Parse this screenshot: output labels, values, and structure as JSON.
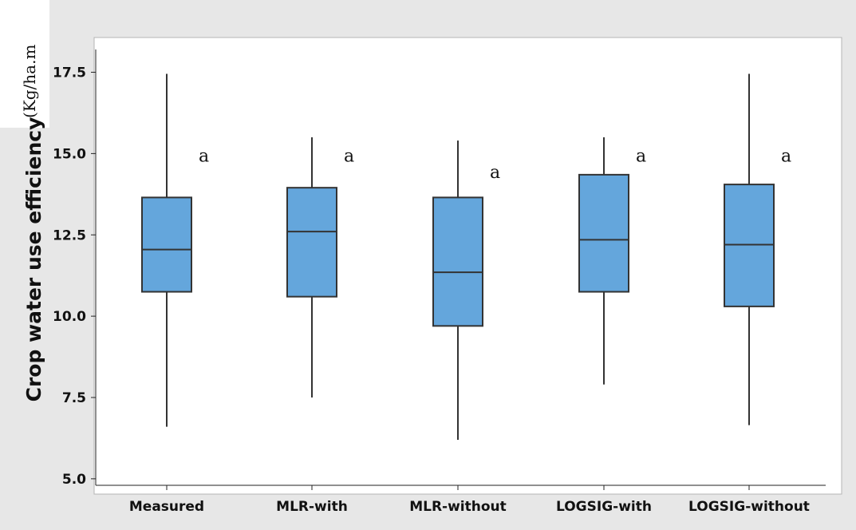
{
  "chart_data": {
    "type": "boxplot",
    "ylabel": "Crop water use efficiency",
    "ylabel_unit": "(Kg/ha.m",
    "xlabel": "",
    "ylim": [
      4.8,
      18.2
    ],
    "yticks": [
      "5.0",
      "7.5",
      "10.0",
      "12.5",
      "15.0",
      "17.5"
    ],
    "ytick_values": [
      5.0,
      7.5,
      10.0,
      12.5,
      15.0,
      17.5
    ],
    "grid": false,
    "box_color": "#64a6dc",
    "categories": [
      "Measured",
      "MLR-with",
      "MLR-without",
      "LOGSIG-with",
      "LOGSIG-without"
    ],
    "boxes": [
      {
        "category": "Measured",
        "min": 6.6,
        "q1": 10.75,
        "median": 12.05,
        "q3": 13.65,
        "max": 17.45,
        "group": "a"
      },
      {
        "category": "MLR-with",
        "min": 7.5,
        "q1": 10.6,
        "median": 12.6,
        "q3": 13.95,
        "max": 15.5,
        "group": "a"
      },
      {
        "category": "MLR-without",
        "min": 6.2,
        "q1": 9.7,
        "median": 11.35,
        "q3": 13.65,
        "max": 15.4,
        "group": "a"
      },
      {
        "category": "LOGSIG-with",
        "min": 7.9,
        "q1": 10.75,
        "median": 12.35,
        "q3": 14.35,
        "max": 15.5,
        "group": "a"
      },
      {
        "category": "LOGSIG-without",
        "min": 6.65,
        "q1": 10.3,
        "median": 12.2,
        "q3": 14.05,
        "max": 17.45,
        "group": "a"
      }
    ],
    "letter_values": [
      14.95,
      14.95,
      14.45,
      14.95,
      14.95
    ]
  }
}
